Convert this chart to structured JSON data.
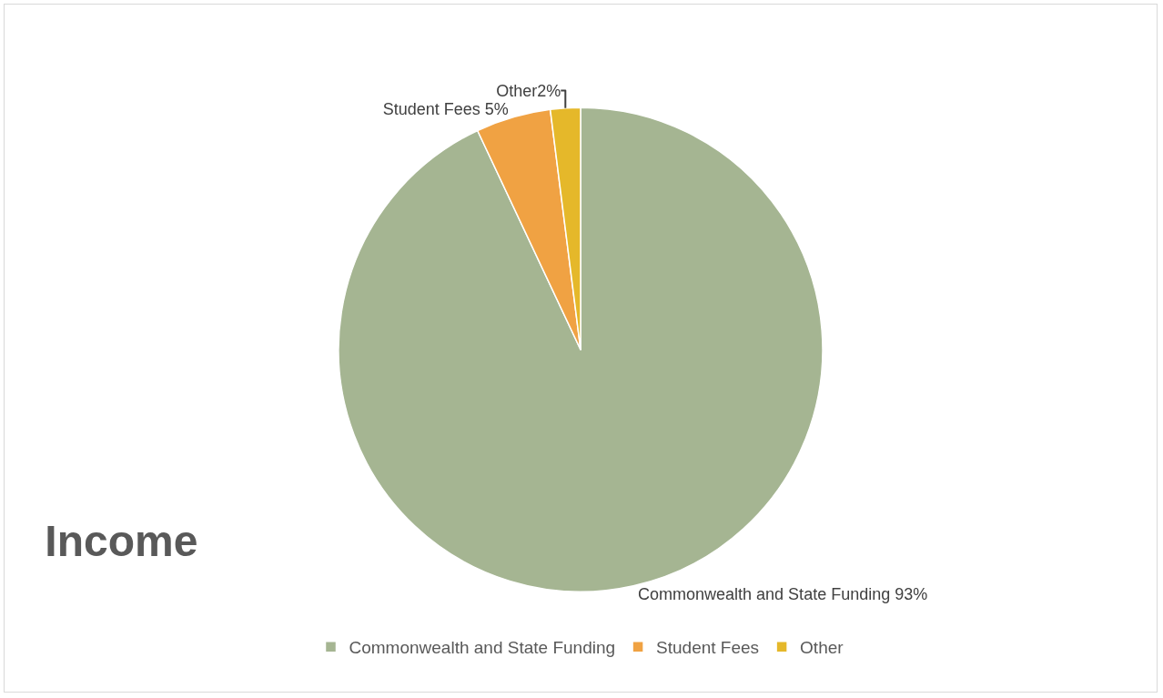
{
  "chart_data": {
    "type": "pie",
    "title": "Income",
    "categories": [
      "Commonwealth and State Funding",
      "Student Fees",
      "Other"
    ],
    "values": [
      93,
      5,
      2
    ],
    "colors": [
      "#a5b592",
      "#f0a243",
      "#e5b82a"
    ],
    "value_labels": [
      "Commonwealth and State Funding 93%",
      "Student Fees 5%",
      "Other2%"
    ],
    "legend": "bottom"
  }
}
